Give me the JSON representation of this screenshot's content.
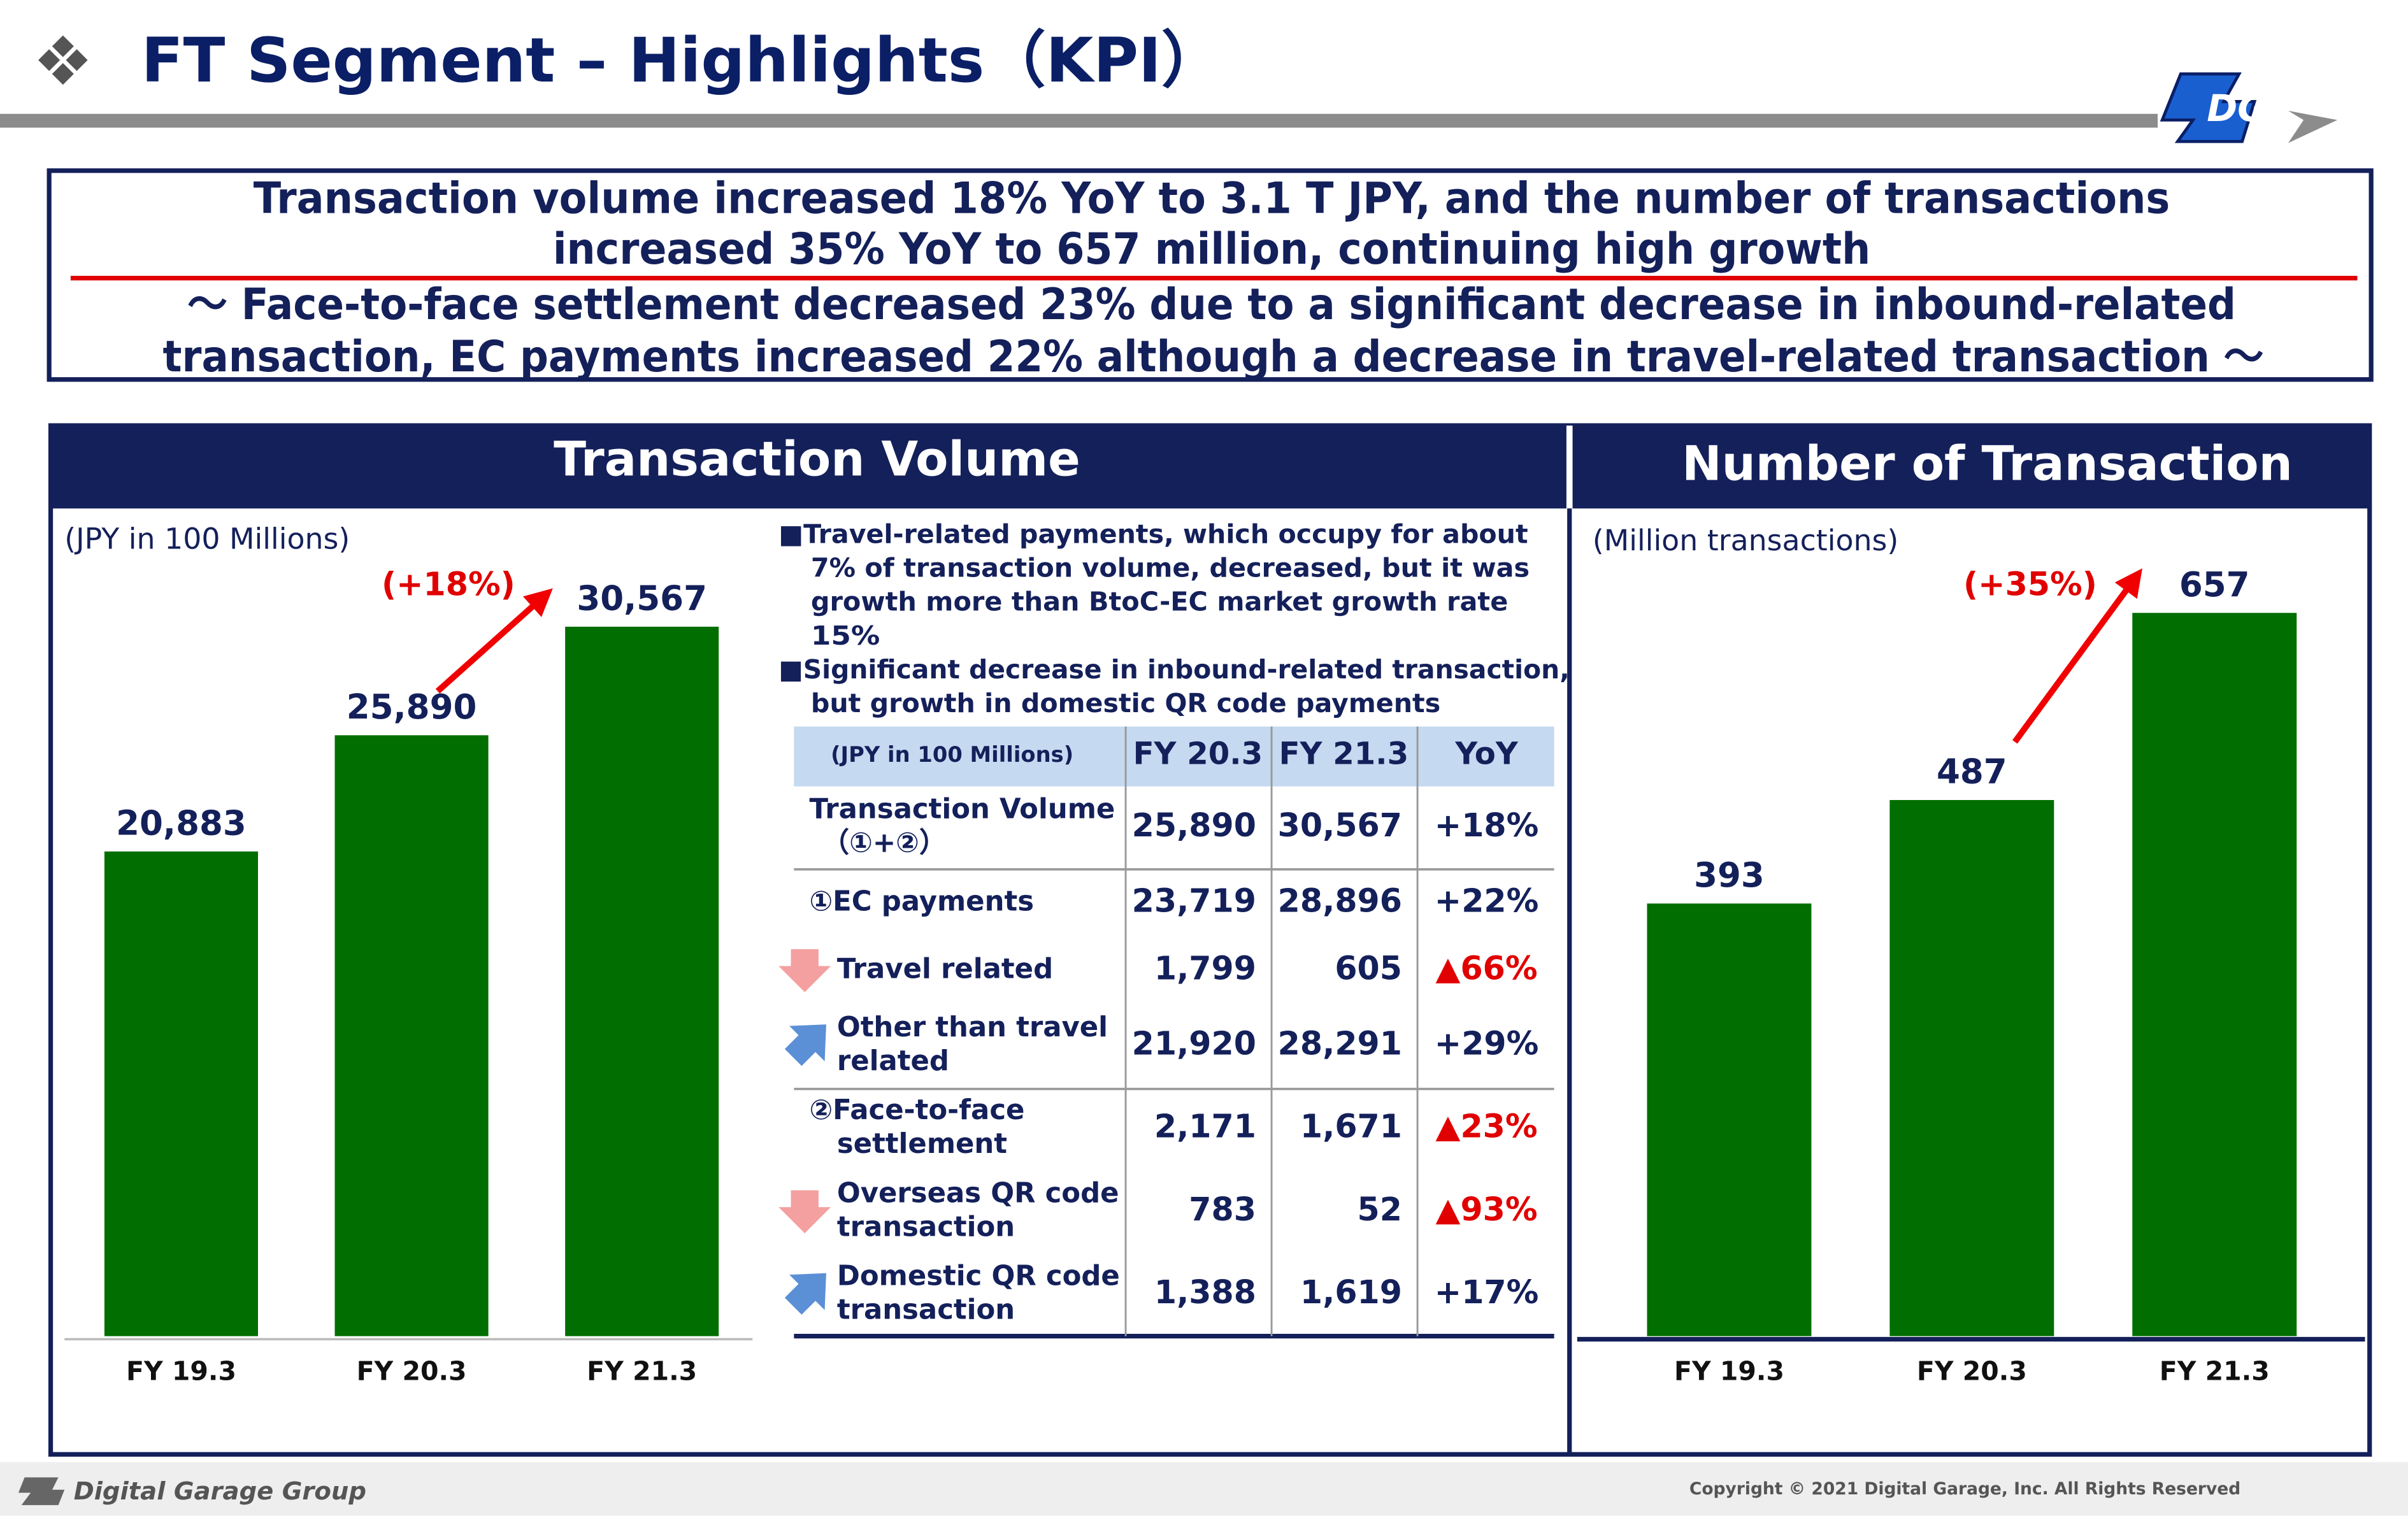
{
  "header": {
    "title": "FT Segment – Highlights（KPI）"
  },
  "summary": {
    "headline": [
      "Transaction volume increased 18% YoY to 3.1 T JPY, and the number of transactions",
      "increased 35% YoY to 657 million, continuing high growth"
    ],
    "detail": [
      "～ Face-to-face settlement decreased 23% due to a significant decrease in inbound-related",
      "transaction, EC payments increased 22% although a decrease in travel-related transaction ～"
    ]
  },
  "panels": [
    "Transaction Volume",
    "Number of Transaction"
  ],
  "chart_data": [
    {
      "type": "bar",
      "unit_label": "(JPY in 100 Millions)",
      "categories": [
        "FY 19.3",
        "FY 20.3",
        "FY 21.3"
      ],
      "values": [
        20883,
        25890,
        30567
      ],
      "value_labels": [
        "20,883",
        "25,890",
        "30,567"
      ],
      "color": "#006e00",
      "annotation": "(+18%)"
    },
    {
      "type": "bar",
      "unit_label": "(Million transactions)",
      "categories": [
        "FY 19.3",
        "FY 20.3",
        "FY 21.3"
      ],
      "values": [
        393,
        487,
        657
      ],
      "color": "#006e00",
      "annotation": "(+35%)"
    }
  ],
  "notes": [
    [
      "■Travel-related payments, which occupy for about",
      "7% of transaction volume, decreased, but it was",
      "growth more than BtoC-EC market growth rate",
      "15%"
    ],
    [
      "■Significant decrease in inbound-related transaction,",
      "but growth in domestic QR code payments"
    ]
  ],
  "table": {
    "columns": [
      "(JPY in 100 Millions)",
      "FY 20.3",
      "FY 21.3",
      "YoY"
    ],
    "rows": [
      [
        [
          "Transaction Volume",
          "（①+②）"
        ],
        "25,890",
        "30,567",
        "+18%"
      ],
      [
        [
          "①EC payments"
        ],
        "23,719",
        "28,896",
        "+22%"
      ],
      [
        [
          "Travel related"
        ],
        "1,799",
        "605",
        "▲66%"
      ],
      [
        [
          "Other than travel",
          "related"
        ],
        "21,920",
        "28,291",
        "+29%"
      ],
      [
        [
          "②Face-to-face",
          "settlement"
        ],
        "2,171",
        "1,671",
        "▲23%"
      ],
      [
        [
          "Overseas QR code",
          "transaction"
        ],
        "783",
        "52",
        "▲93%"
      ],
      [
        [
          "Domestic QR code",
          "transaction"
        ],
        "1,388",
        "1,619",
        "+17%"
      ]
    ]
  },
  "footer": {
    "brand": "Digital Garage Group",
    "copyright": "Copyright © 2021 Digital Garage, Inc. All Rights Reserved"
  }
}
